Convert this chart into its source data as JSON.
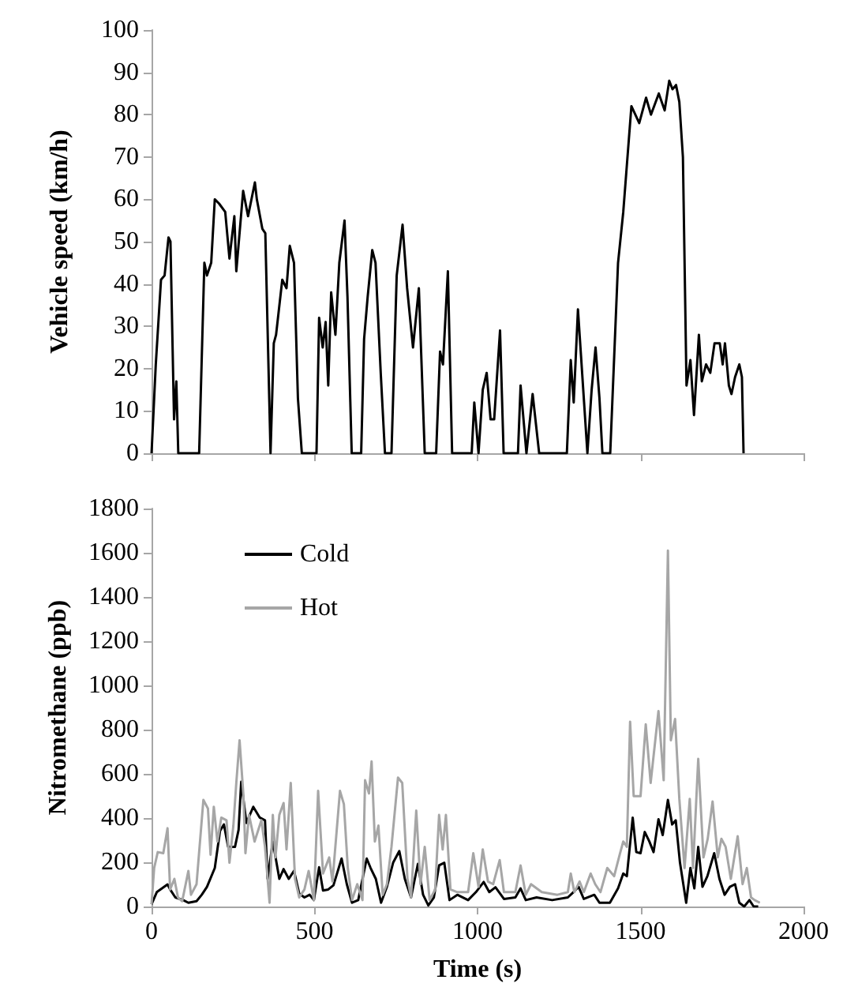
{
  "chart_data": [
    {
      "type": "line",
      "ylabel": "Vehicle speed (km/h)",
      "xlim": [
        0,
        2000
      ],
      "xticks": [
        0,
        500,
        1000,
        1500,
        2000
      ],
      "ylim": [
        0,
        100
      ],
      "yticks": [
        0,
        10,
        20,
        30,
        40,
        50,
        60,
        70,
        80,
        90,
        100
      ],
      "tick_labels": "y",
      "grid": false,
      "legend": false,
      "series": [
        {
          "color": "#000000",
          "x": [
            0,
            13,
            29,
            40,
            52,
            58,
            69,
            76,
            82,
            146,
            162,
            170,
            183,
            194,
            207,
            226,
            239,
            254,
            260,
            281,
            296,
            317,
            323,
            340,
            349,
            365,
            375,
            382,
            401,
            414,
            424,
            437,
            449,
            461,
            506,
            514,
            525,
            534,
            542,
            551,
            564,
            576,
            592,
            601,
            614,
            643,
            652,
            663,
            677,
            687,
            703,
            716,
            736,
            752,
            770,
            784,
            802,
            820,
            838,
            873,
            885,
            894,
            909,
            922,
            982,
            990,
            1003,
            1016,
            1028,
            1040,
            1051,
            1069,
            1080,
            1124,
            1132,
            1150,
            1169,
            1189,
            1274,
            1286,
            1295,
            1308,
            1320,
            1337,
            1350,
            1362,
            1374,
            1383,
            1407,
            1431,
            1447,
            1472,
            1496,
            1517,
            1532,
            1556,
            1574,
            1588,
            1598,
            1609,
            1619,
            1630,
            1641,
            1653,
            1664,
            1679,
            1688,
            1701,
            1714,
            1727,
            1743,
            1752,
            1759,
            1771,
            1779,
            1790,
            1803,
            1811,
            1816
          ],
          "values": [
            0,
            21,
            41,
            42,
            51,
            50,
            8,
            17,
            0,
            0,
            45,
            42,
            45,
            60,
            59,
            57,
            46,
            56,
            43,
            62,
            56,
            64,
            60,
            53,
            52,
            0,
            26,
            28,
            41,
            39,
            49,
            45,
            13,
            0,
            0,
            32,
            25,
            31,
            16,
            38,
            28,
            45,
            55,
            37,
            0,
            0,
            27,
            37,
            48,
            45,
            19,
            0,
            0,
            42,
            54,
            39,
            25,
            39,
            0,
            0,
            24,
            21,
            43,
            0,
            0,
            12,
            0,
            15,
            19,
            8,
            8,
            29,
            0,
            0,
            16,
            0,
            14,
            0,
            0,
            22,
            12,
            34,
            20,
            0,
            15,
            25,
            13,
            0,
            0,
            45,
            57,
            82,
            78,
            84,
            80,
            85,
            81,
            88,
            86,
            87,
            83,
            70,
            16,
            22,
            9,
            28,
            17,
            21,
            19,
            26,
            26,
            21,
            26,
            16,
            14,
            18,
            21,
            18,
            0
          ]
        }
      ]
    },
    {
      "type": "line",
      "xlabel": "Time (s)",
      "ylabel": "Nitromethane (ppb)",
      "xlim": [
        0,
        2000
      ],
      "xticks": [
        0,
        500,
        1000,
        1500,
        2000
      ],
      "ylim": [
        0,
        1800
      ],
      "yticks": [
        0,
        200,
        400,
        600,
        800,
        1000,
        1200,
        1400,
        1600,
        1800
      ],
      "grid": false,
      "legend": "top left",
      "series": [
        {
          "name": "Cold",
          "color": "#000000",
          "x": [
            0,
            16,
            49,
            57,
            73,
            97,
            113,
            138,
            154,
            170,
            194,
            210,
            222,
            235,
            256,
            267,
            275,
            291,
            312,
            332,
            348,
            356,
            372,
            392,
            405,
            421,
            437,
            453,
            469,
            485,
            498,
            514,
            526,
            542,
            558,
            583,
            599,
            615,
            634,
            660,
            672,
            688,
            704,
            722,
            741,
            760,
            777,
            796,
            817,
            833,
            849,
            866,
            882,
            898,
            914,
            938,
            971,
            995,
            1019,
            1036,
            1055,
            1081,
            1116,
            1132,
            1148,
            1181,
            1229,
            1277,
            1294,
            1310,
            1326,
            1358,
            1374,
            1406,
            1431,
            1447,
            1458,
            1476,
            1487,
            1500,
            1513,
            1527,
            1540,
            1555,
            1568,
            1584,
            1597,
            1608,
            1621,
            1640,
            1653,
            1665,
            1677,
            1690,
            1705,
            1726,
            1742,
            1758,
            1774,
            1790,
            1803,
            1818,
            1834,
            1847,
            1861
          ],
          "values": [
            10,
            65,
            100,
            77,
            41,
            29,
            17,
            24,
            53,
            89,
            174,
            342,
            371,
            270,
            270,
            347,
            564,
            378,
            451,
            402,
            390,
            125,
            294,
            125,
            169,
            125,
            161,
            58,
            41,
            53,
            29,
            178,
            72,
            77,
            96,
            217,
            101,
            17,
            29,
            217,
            174,
            125,
            17,
            89,
            198,
            251,
            125,
            41,
            193,
            53,
            5,
            41,
            186,
            198,
            29,
            53,
            29,
            65,
            111,
            65,
            87,
            34,
            41,
            82,
            29,
            41,
            29,
            41,
            65,
            89,
            34,
            53,
            17,
            17,
            82,
            149,
            137,
            402,
            246,
            241,
            337,
            294,
            246,
            395,
            323,
            482,
            371,
            390,
            198,
            17,
            174,
            82,
            270,
            89,
            137,
            241,
            125,
            53,
            89,
            101,
            17,
            0,
            29,
            0,
            0
          ]
        },
        {
          "name": "Hot",
          "color": "#a6a6a6",
          "x": [
            0,
            8,
            19,
            36,
            49,
            57,
            70,
            81,
            94,
            113,
            121,
            138,
            159,
            173,
            181,
            191,
            202,
            214,
            230,
            239,
            251,
            260,
            270,
            282,
            288,
            299,
            316,
            337,
            348,
            362,
            372,
            380,
            392,
            405,
            414,
            427,
            440,
            453,
            469,
            482,
            498,
            511,
            526,
            545,
            555,
            578,
            590,
            602,
            615,
            631,
            647,
            655,
            667,
            675,
            685,
            696,
            709,
            722,
            736,
            756,
            769,
            785,
            796,
            812,
            825,
            838,
            853,
            870,
            882,
            893,
            903,
            917,
            938,
            971,
            987,
            1003,
            1016,
            1032,
            1048,
            1068,
            1081,
            1116,
            1132,
            1148,
            1164,
            1197,
            1245,
            1277,
            1286,
            1297,
            1313,
            1326,
            1347,
            1361,
            1377,
            1398,
            1419,
            1436,
            1447,
            1458,
            1468,
            1479,
            1500,
            1516,
            1531,
            1555,
            1571,
            1584,
            1593,
            1606,
            1619,
            1635,
            1651,
            1661,
            1677,
            1693,
            1706,
            1721,
            1737,
            1748,
            1761,
            1777,
            1798,
            1813,
            1826,
            1839,
            1850,
            1866
          ],
          "values": [
            10,
            174,
            246,
            241,
            354,
            77,
            125,
            41,
            24,
            161,
            53,
            101,
            482,
            443,
            234,
            451,
            294,
            402,
            390,
            198,
            366,
            559,
            752,
            499,
            241,
            414,
            294,
            390,
            270,
            17,
            414,
            222,
            414,
            468,
            258,
            559,
            125,
            41,
            77,
            161,
            29,
            523,
            149,
            222,
            113,
            523,
            463,
            174,
            29,
            101,
            29,
            571,
            511,
            656,
            294,
            366,
            53,
            101,
            270,
            583,
            559,
            125,
            41,
            434,
            101,
            270,
            29,
            77,
            414,
            258,
            414,
            77,
            65,
            65,
            241,
            89,
            258,
            113,
            101,
            210,
            65,
            65,
            186,
            53,
            101,
            65,
            53,
            65,
            149,
            65,
            113,
            65,
            149,
            101,
            65,
            174,
            137,
            234,
            294,
            270,
            836,
            499,
            499,
            824,
            559,
            884,
            571,
            1610,
            752,
            848,
            487,
            174,
            487,
            174,
            668,
            222,
            306,
            475,
            222,
            306,
            270,
            125,
            318,
            101,
            174,
            41,
            29,
            17
          ]
        }
      ]
    }
  ]
}
